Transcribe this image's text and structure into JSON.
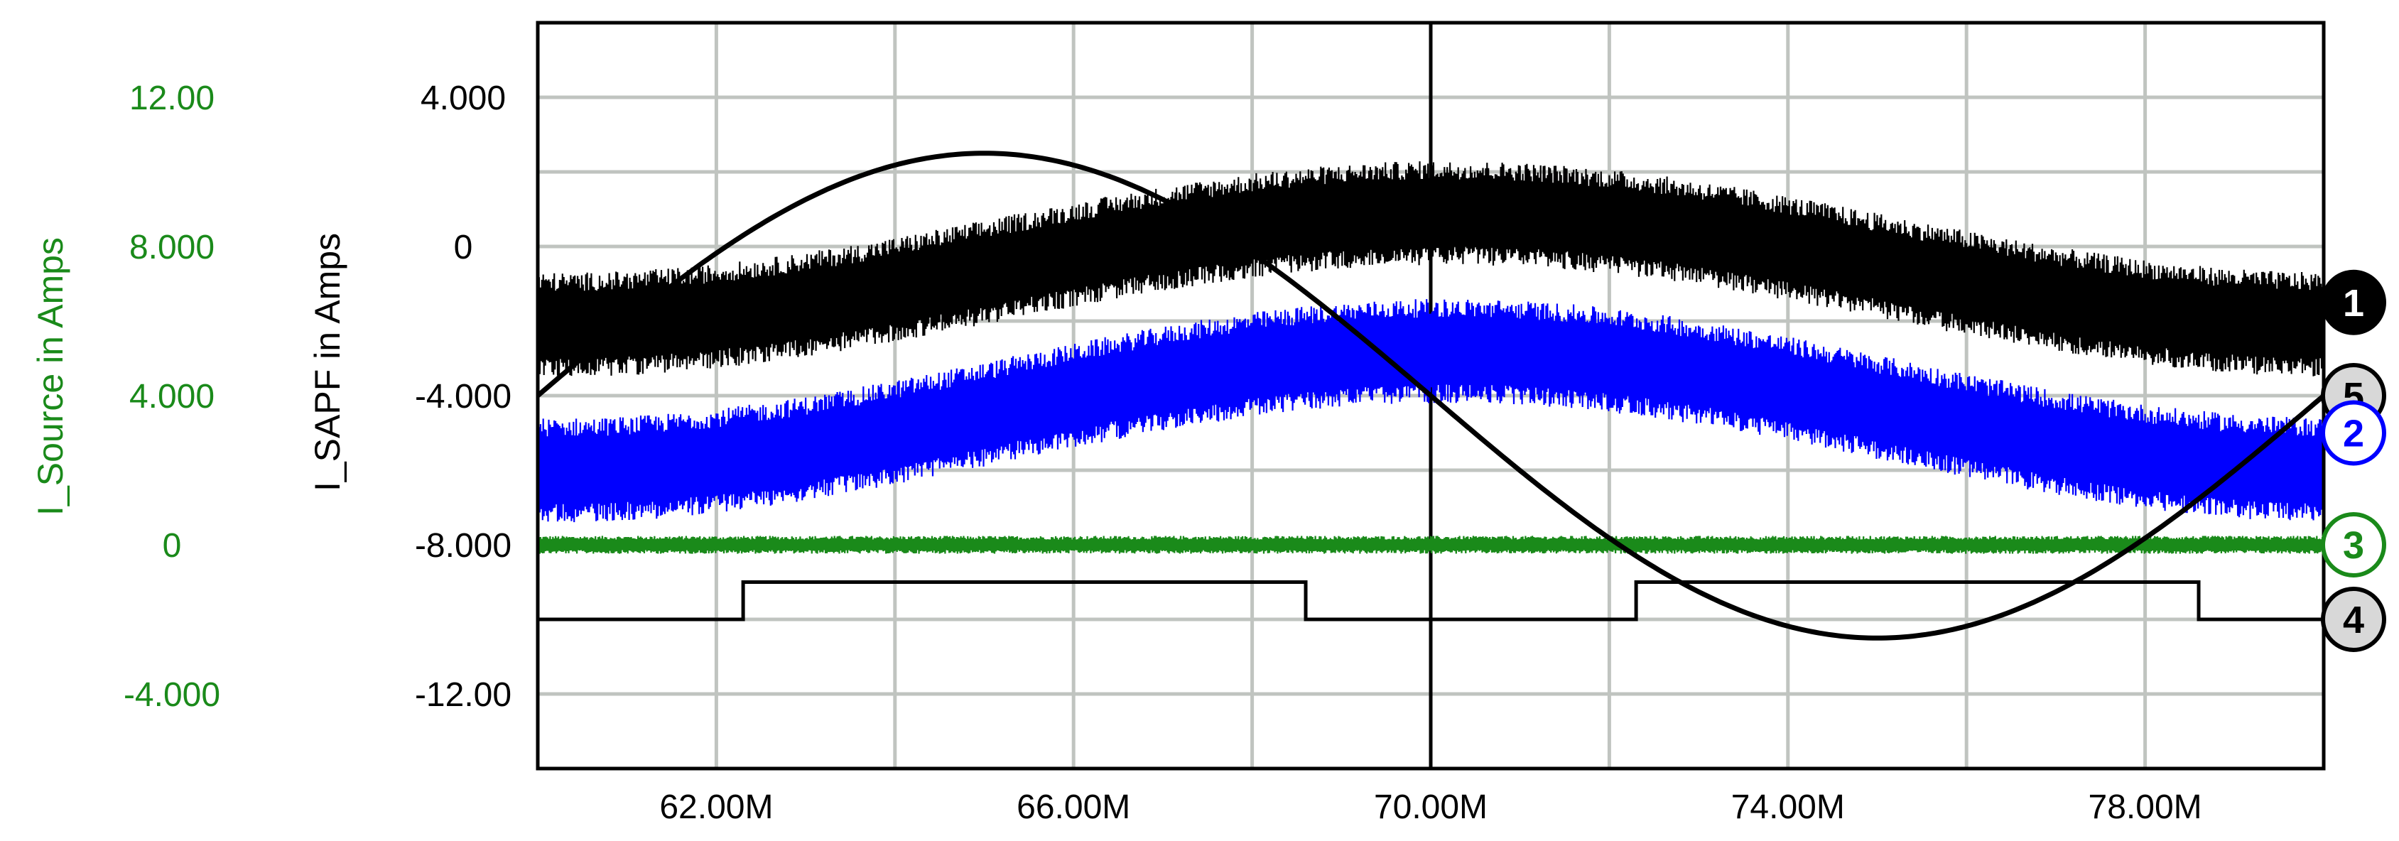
{
  "chart_data": {
    "type": "line",
    "x_axis": {
      "unit_hint": "seconds (M suffix)",
      "range": [
        60.0,
        80.0
      ],
      "tick_values": [
        62,
        66,
        70,
        74,
        78
      ],
      "tick_labels": [
        "62.00M",
        "66.00M",
        "70.00M",
        "74.00M",
        "78.00M"
      ],
      "grid_values": [
        60,
        62,
        64,
        66,
        68,
        70,
        72,
        74,
        76,
        78,
        80
      ],
      "cursor_at": 70.0
    },
    "y_axes": [
      {
        "id": "isapf",
        "title": "I_SAPF in Amps",
        "color": "#000000",
        "range": [
          -14.0,
          6.0
        ],
        "tick_values": [
          4,
          0,
          -4,
          -8,
          -12
        ],
        "tick_labels": [
          "4.000",
          "0",
          "-4.000",
          "-8.000",
          "-12.00"
        ]
      },
      {
        "id": "isource",
        "title": "I_Source in Amps",
        "color": "#1a8a1a",
        "tick_values": [
          12,
          8,
          4,
          0,
          -4
        ],
        "tick_labels": [
          "12.00",
          "8.000",
          "4.000",
          "0",
          "-4.000"
        ]
      }
    ],
    "grid": true,
    "series": [
      {
        "badge": "1",
        "axis": "isapf",
        "color": "#000000",
        "kind": "noisy",
        "center": -0.6,
        "amplitude": 1.5,
        "period": 20,
        "phase_peak_x": 70.2,
        "noise_base": 0.9,
        "noise_extra": 0.5,
        "end_value": -1.5
      },
      {
        "badge": "2",
        "axis": "isapf",
        "color": "#0000ff",
        "kind": "noisy",
        "center": -4.4,
        "amplitude": 1.6,
        "period": 20,
        "phase_peak_x": 70.2,
        "noise_base": 0.9,
        "noise_extra": 0.5,
        "end_value": -5.0
      },
      {
        "badge": "3",
        "axis": "isapf",
        "color": "#1a8a1a",
        "kind": "noisy",
        "center": -8.0,
        "amplitude": 0.0,
        "period": 20,
        "phase_peak_x": 70.0,
        "noise_base": 0.14,
        "noise_extra": 0.1,
        "end_value": -8.0
      },
      {
        "badge": "4",
        "axis": "isapf",
        "color": "#000000",
        "kind": "square",
        "low": -10.0,
        "high": -9.0,
        "edges": [
          [
            62.3,
            "up"
          ],
          [
            68.6,
            "down"
          ],
          [
            72.3,
            "up"
          ],
          [
            78.6,
            "down"
          ]
        ],
        "end_value": -10.0
      },
      {
        "badge": "5",
        "axis": "isapf",
        "color": "#000000",
        "kind": "sine",
        "center": -4.0,
        "amplitude": 6.5,
        "period": 20,
        "phase_peak_x": 65.0,
        "end_value": -4.0
      }
    ],
    "badges": [
      "1",
      "5",
      "2",
      "3",
      "4"
    ],
    "badge_styles": {
      "1": {
        "fill": "#000000",
        "text": "#ffffff",
        "stroke": "#000000"
      },
      "5": {
        "fill": "#d8d8d8",
        "text": "#000000",
        "stroke": "#000000"
      },
      "2": {
        "fill": "#ffffff",
        "text": "#0000ff",
        "stroke": "#0000ff"
      },
      "3": {
        "fill": "#ffffff",
        "text": "#1a8a1a",
        "stroke": "#1a8a1a"
      },
      "4": {
        "fill": "#d8d8d8",
        "text": "#000000",
        "stroke": "#000000"
      }
    },
    "colors": {
      "grid": "#c0c4c0",
      "frame": "#000000",
      "green": "#1a8a1a",
      "blue": "#0000ff"
    }
  }
}
